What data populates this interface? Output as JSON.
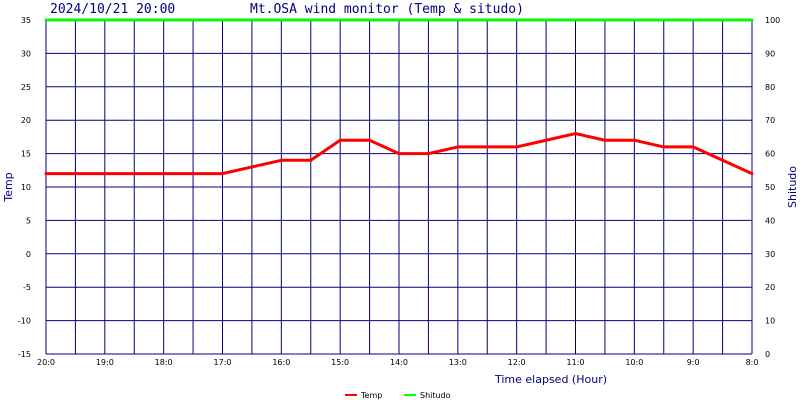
{
  "chart_data": {
    "type": "line",
    "title": "Mt.OSA wind monitor (Temp & situdo)",
    "timestamp": "2024/10/21 20:00",
    "xlabel": "Time elapsed (Hour)",
    "ylabel_left": "Temp",
    "ylabel_right": "Shitudo",
    "ylim_left": [
      -15,
      35
    ],
    "ylim_right": [
      0,
      100
    ],
    "yticks_left": [
      "35",
      "30",
      "25",
      "20",
      "15",
      "10",
      "5",
      "0",
      "-5",
      "-10",
      "-15"
    ],
    "yticks_right": [
      "100",
      "90",
      "80",
      "70",
      "60",
      "50",
      "40",
      "30",
      "20",
      "10",
      "0"
    ],
    "x_tick_labels": [
      "20:0",
      "19:0",
      "18:0",
      "17:0",
      "16:0",
      "15:0",
      "14:0",
      "13:0",
      "12:0",
      "11:0",
      "10:0",
      "9:0",
      "8:0"
    ],
    "grid": true,
    "legend_position": "bottom-center",
    "colors": {
      "temp": "#ff0000",
      "shitudo": "#00ff00",
      "grid": "#000080",
      "text": "#000080"
    },
    "series": [
      {
        "name": "Temp",
        "axis": "left",
        "x": [
          0,
          0.5,
          1,
          1.5,
          2,
          2.5,
          3,
          3.5,
          4,
          4.5,
          5,
          5.5,
          6,
          6.5,
          7,
          7.5,
          8,
          8.5,
          9,
          9.5,
          10,
          10.5,
          11,
          11.5,
          12
        ],
        "values": [
          12,
          12,
          12,
          12,
          12,
          12,
          12,
          13,
          14,
          14,
          17,
          17,
          15,
          15,
          16,
          16,
          16,
          17,
          18,
          17,
          17,
          16,
          16,
          14,
          12
        ]
      },
      {
        "name": "Shitudo",
        "axis": "right",
        "x": [
          0,
          12
        ],
        "values": [
          100,
          100
        ]
      }
    ]
  }
}
